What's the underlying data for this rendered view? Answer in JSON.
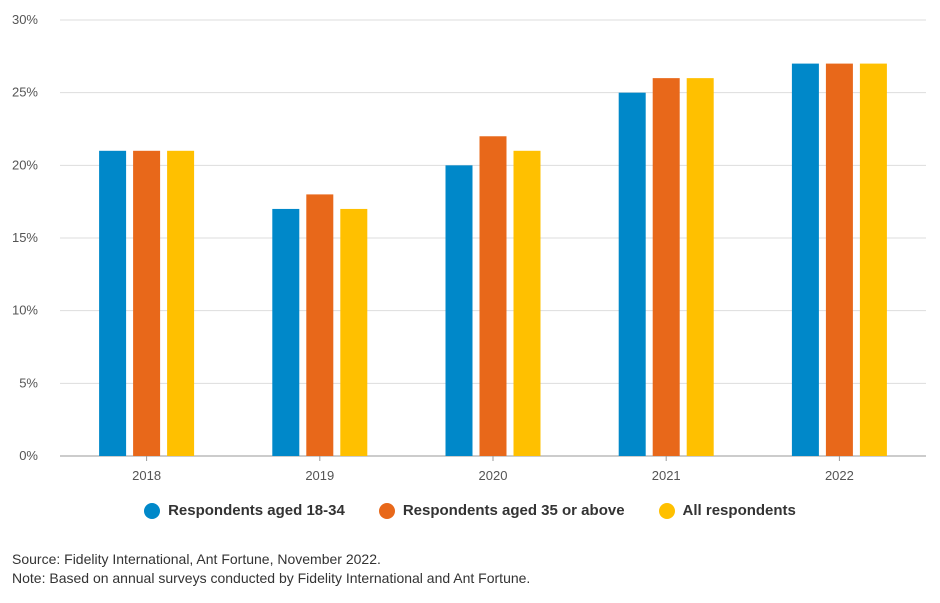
{
  "chart_data": {
    "type": "bar",
    "categories": [
      "2018",
      "2019",
      "2020",
      "2021",
      "2022"
    ],
    "series": [
      {
        "name": "Respondents aged 18-34",
        "color": "#0088C9",
        "values": [
          21,
          17,
          20,
          25,
          27
        ]
      },
      {
        "name": "Respondents aged 35 or above",
        "color": "#E8681A",
        "values": [
          21,
          18,
          22,
          26,
          27
        ]
      },
      {
        "name": "All respondents",
        "color": "#FFC000",
        "values": [
          21,
          17,
          21,
          26,
          27
        ]
      }
    ],
    "ylim": [
      0,
      30
    ],
    "yticks": [
      0,
      5,
      10,
      15,
      20,
      25,
      30
    ],
    "ytick_labels": [
      "0%",
      "5%",
      "10%",
      "15%",
      "20%",
      "25%",
      "30%"
    ],
    "grid": true,
    "legend_position": "bottom-center",
    "title": "",
    "xlabel": "",
    "ylabel": ""
  },
  "notes": {
    "source": "Source: Fidelity International, Ant Fortune, November 2022.",
    "note": "Note: Based on annual surveys conducted by Fidelity International and Ant Fortune."
  },
  "colors": {
    "grid": "#DDDDDD",
    "axis": "#999999"
  }
}
